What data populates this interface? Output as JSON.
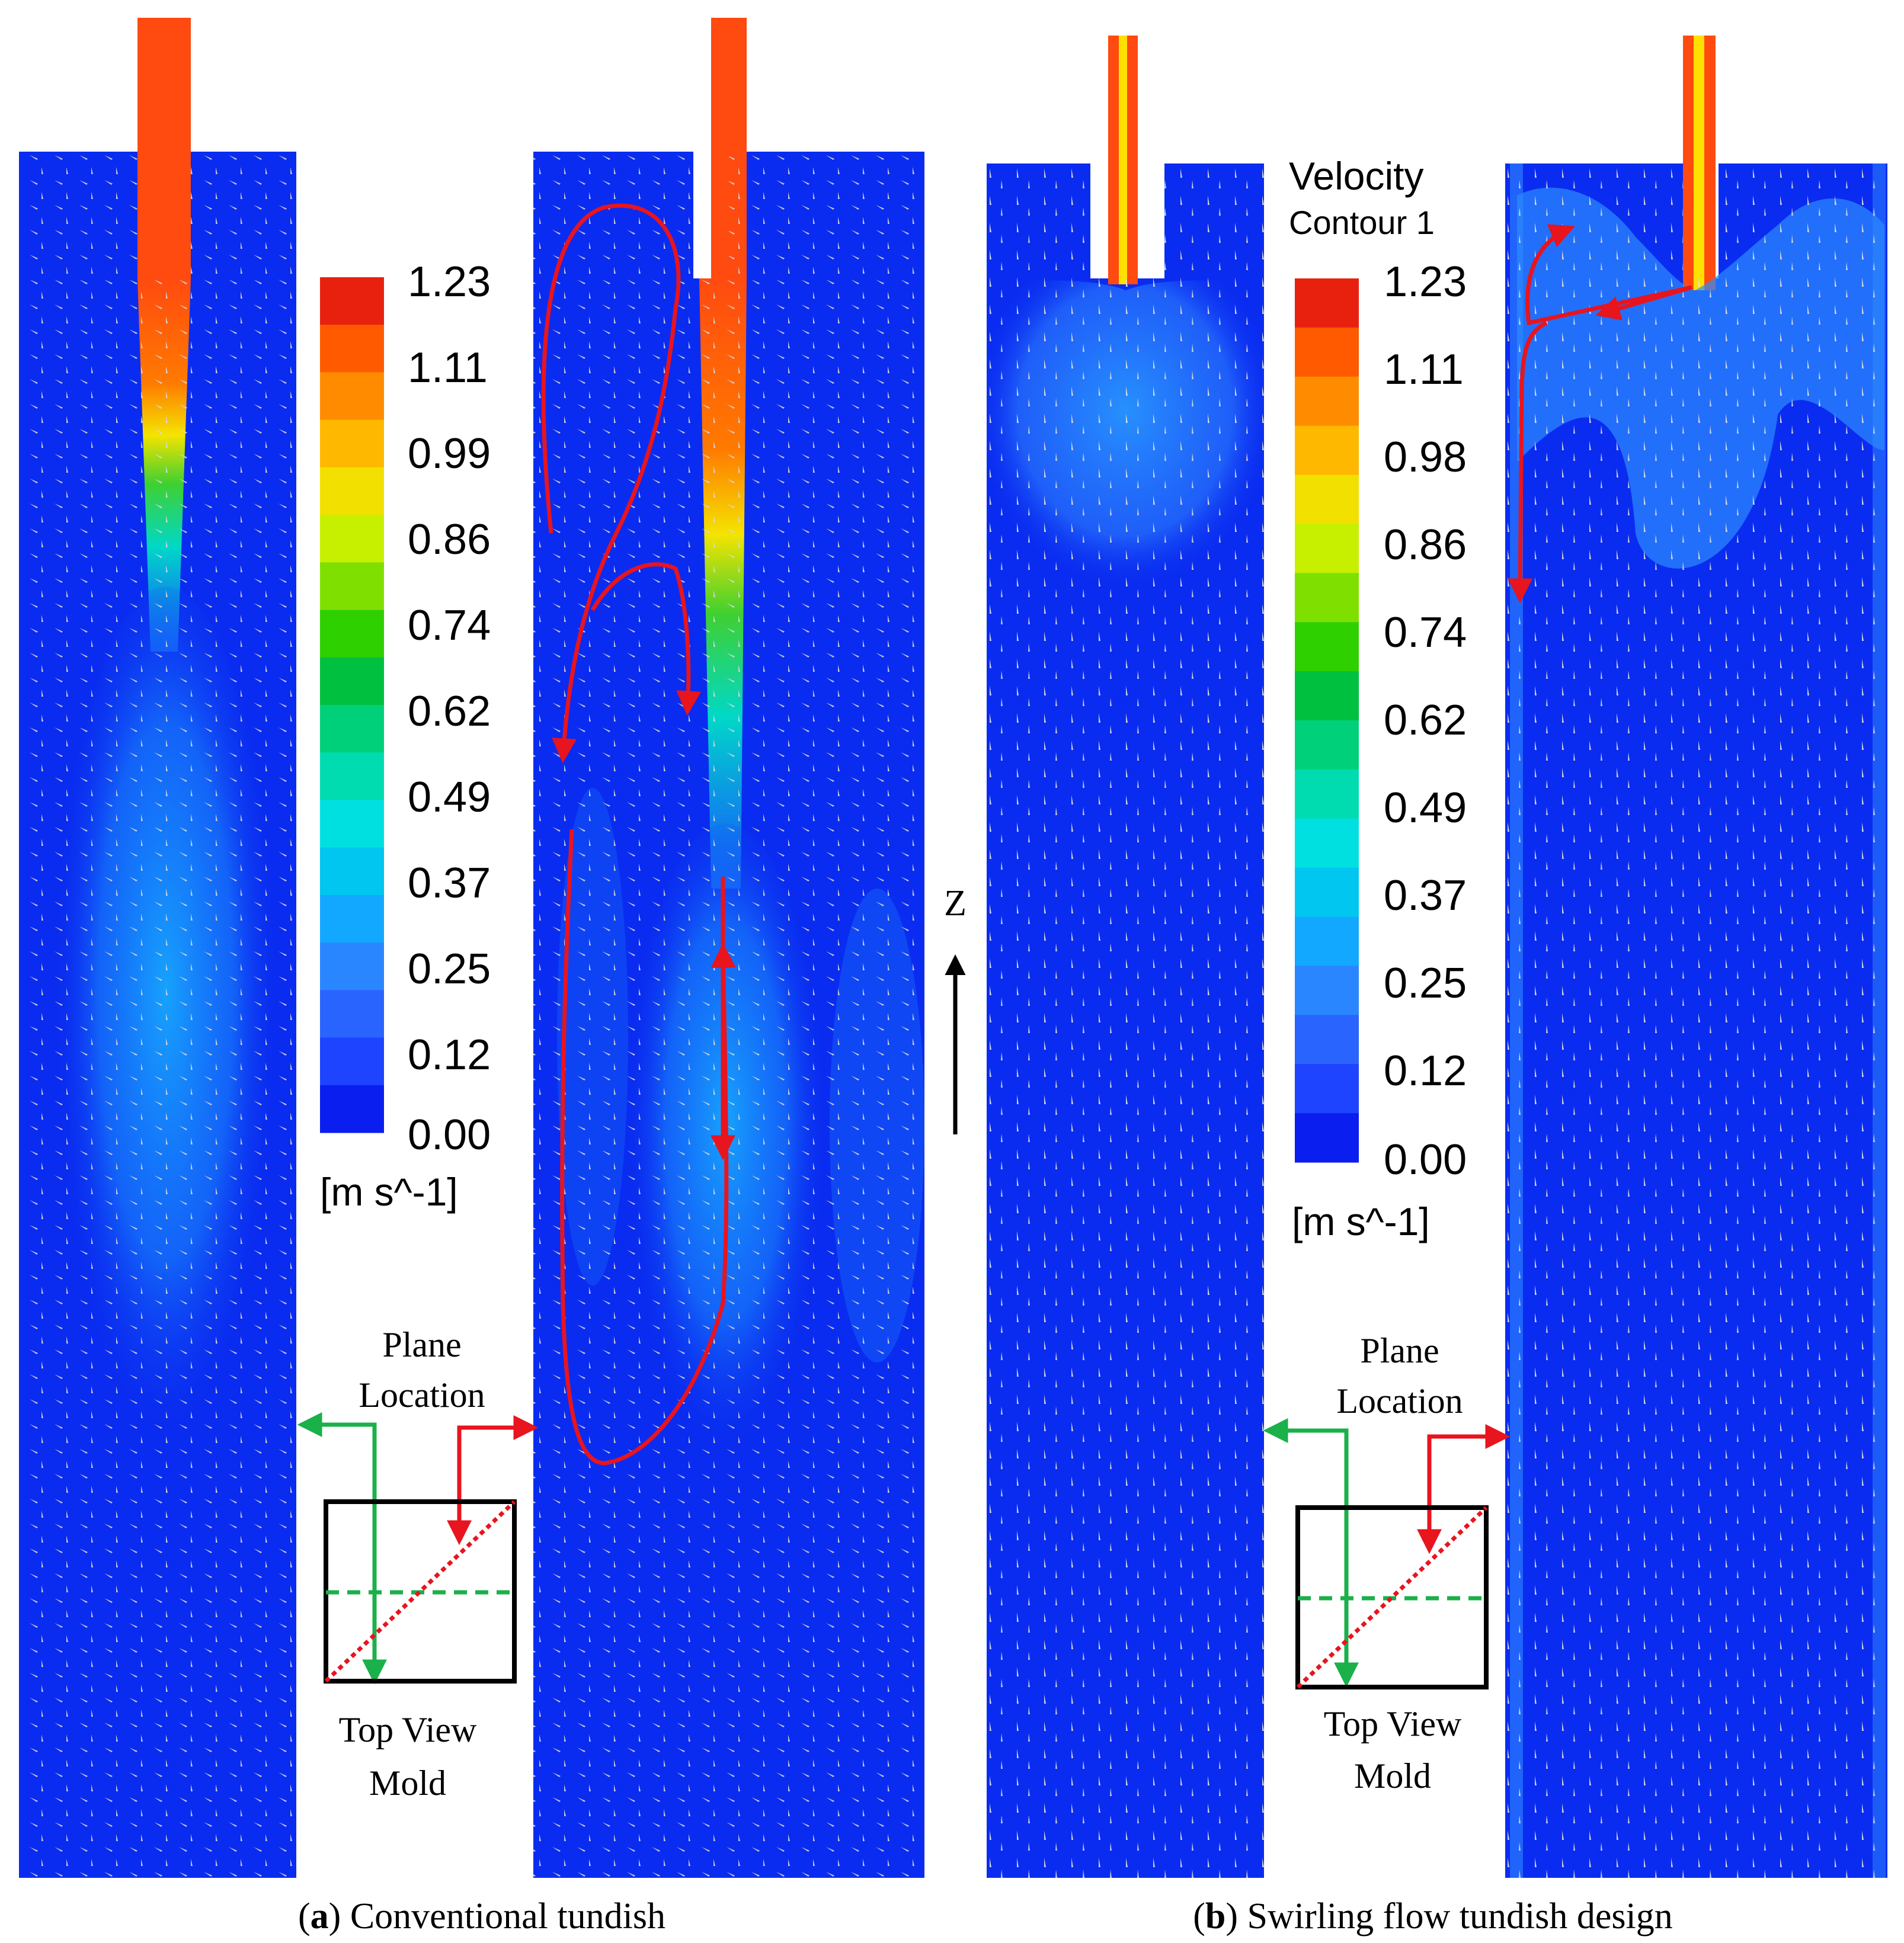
{
  "figure": {
    "panel_a": {
      "letter": "a",
      "caption": "Conventional tundish",
      "colorbar": {
        "ticks": [
          "1.23",
          "1.11",
          "0.99",
          "0.86",
          "0.74",
          "0.62",
          "0.49",
          "0.37",
          "0.25",
          "0.12",
          "0.00"
        ],
        "unit": "[m s^-1]"
      },
      "inset": {
        "line1": "Plane",
        "line2": "Location",
        "caption1": "Top View",
        "caption2": "Mold"
      }
    },
    "panel_b": {
      "letter": "b",
      "caption": "Swirling flow tundish design",
      "colorbar": {
        "title1": "Velocity",
        "title2": "Contour 1",
        "ticks": [
          "1.23",
          "1.11",
          "0.98",
          "0.86",
          "0.74",
          "0.62",
          "0.49",
          "0.37",
          "0.25",
          "0.12",
          "0.00"
        ],
        "unit": "[m s^-1]"
      },
      "inset": {
        "line1": "Plane",
        "line2": "Location",
        "caption1": "Top View",
        "caption2": "Mold"
      }
    },
    "axis_label": "Z",
    "colors": {
      "background_fluid": "#0a2cf0",
      "jet_hot": "#ff3a10",
      "plane_green": "#1ab04a",
      "plane_red": "#e8141e",
      "streamline": "#e8141e",
      "colorbar_scale": [
        "#e8210f",
        "#ff5a00",
        "#ff8c00",
        "#ffb800",
        "#f2e000",
        "#c6f000",
        "#7fe000",
        "#2fd000",
        "#00c040",
        "#00d07a",
        "#00dcb0",
        "#00e0e0",
        "#00c6f0",
        "#12a8ff",
        "#2a86ff",
        "#2a64ff",
        "#1e44ff",
        "#0a1ef0"
      ]
    }
  }
}
